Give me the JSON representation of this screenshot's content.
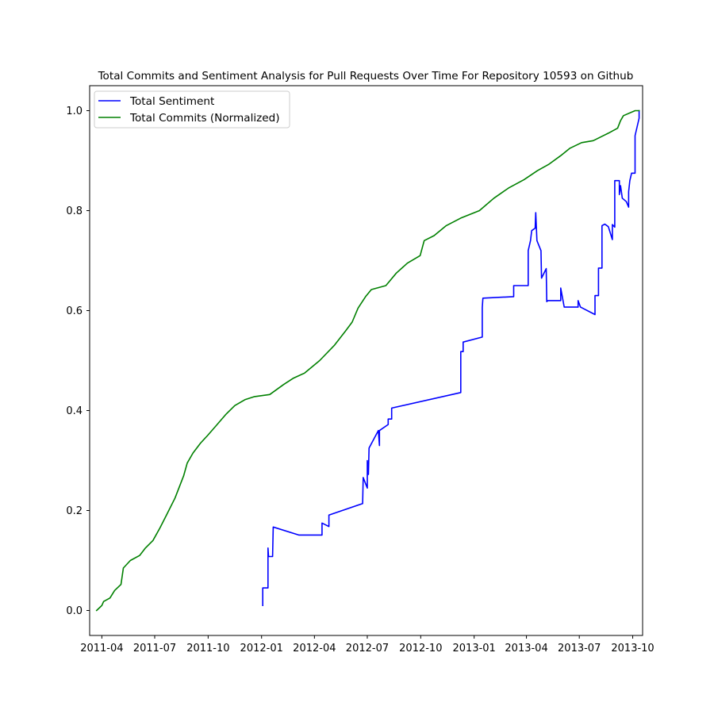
{
  "chart_data": {
    "type": "line",
    "title": "Total Commits and Sentiment Analysis for Pull Requests Over Time For Repository 10593 on Github",
    "xlabel": "",
    "ylabel": "",
    "xlim": [
      "2011-03-11",
      "2013-10-18"
    ],
    "ylim": [
      -0.05,
      1.05
    ],
    "grid": false,
    "legend_position": "top-left",
    "x_ticks": [
      "2011-04",
      "2011-07",
      "2011-10",
      "2012-01",
      "2012-04",
      "2012-07",
      "2012-10",
      "2013-01",
      "2013-04",
      "2013-07",
      "2013-10"
    ],
    "y_ticks": [
      "0.0",
      "0.2",
      "0.4",
      "0.6",
      "0.8",
      "1.0"
    ],
    "series": [
      {
        "name": "Total Sentiment",
        "color": "#0000ff",
        "points": [
          [
            "2012-01-03",
            0.01
          ],
          [
            "2012-01-03",
            0.045
          ],
          [
            "2012-01-12",
            0.045
          ],
          [
            "2012-01-12",
            0.125
          ],
          [
            "2012-01-13",
            0.108
          ],
          [
            "2012-01-20",
            0.108
          ],
          [
            "2012-01-21",
            0.167
          ],
          [
            "2012-03-05",
            0.151
          ],
          [
            "2012-04-14",
            0.151
          ],
          [
            "2012-04-14",
            0.175
          ],
          [
            "2012-04-26",
            0.168
          ],
          [
            "2012-04-26",
            0.191
          ],
          [
            "2012-06-23",
            0.214
          ],
          [
            "2012-06-24",
            0.266
          ],
          [
            "2012-07-01",
            0.245
          ],
          [
            "2012-07-01",
            0.3
          ],
          [
            "2012-07-03",
            0.272
          ],
          [
            "2012-07-04",
            0.325
          ],
          [
            "2012-07-20",
            0.36
          ],
          [
            "2012-07-22",
            0.33
          ],
          [
            "2012-07-22",
            0.36
          ],
          [
            "2012-08-06",
            0.372
          ],
          [
            "2012-08-06",
            0.383
          ],
          [
            "2012-08-12",
            0.383
          ],
          [
            "2012-08-12",
            0.405
          ],
          [
            "2012-12-09",
            0.436
          ],
          [
            "2012-12-09",
            0.518
          ],
          [
            "2012-12-13",
            0.518
          ],
          [
            "2012-12-13",
            0.537
          ],
          [
            "2013-01-15",
            0.547
          ],
          [
            "2013-01-15",
            0.606
          ],
          [
            "2013-01-16",
            0.625
          ],
          [
            "2013-03-10",
            0.628
          ],
          [
            "2013-03-10",
            0.65
          ],
          [
            "2013-04-04",
            0.65
          ],
          [
            "2013-04-04",
            0.72
          ],
          [
            "2013-04-08",
            0.74
          ],
          [
            "2013-04-10",
            0.76
          ],
          [
            "2013-04-16",
            0.765
          ],
          [
            "2013-04-17",
            0.796
          ],
          [
            "2013-04-19",
            0.74
          ],
          [
            "2013-04-26",
            0.72
          ],
          [
            "2013-04-27",
            0.665
          ],
          [
            "2013-05-05",
            0.684
          ],
          [
            "2013-05-06",
            0.618
          ],
          [
            "2013-05-08",
            0.62
          ],
          [
            "2013-05-30",
            0.62
          ],
          [
            "2013-05-30",
            0.645
          ],
          [
            "2013-06-05",
            0.607
          ],
          [
            "2013-06-29",
            0.607
          ],
          [
            "2013-06-29",
            0.62
          ],
          [
            "2013-07-03",
            0.607
          ],
          [
            "2013-07-28",
            0.592
          ],
          [
            "2013-07-28",
            0.63
          ],
          [
            "2013-08-03",
            0.63
          ],
          [
            "2013-08-03",
            0.685
          ],
          [
            "2013-08-09",
            0.685
          ],
          [
            "2013-08-09",
            0.77
          ],
          [
            "2013-08-14",
            0.773
          ],
          [
            "2013-08-20",
            0.768
          ],
          [
            "2013-08-27",
            0.742
          ],
          [
            "2013-08-27",
            0.772
          ],
          [
            "2013-08-31",
            0.767
          ],
          [
            "2013-08-31",
            0.86
          ],
          [
            "2013-09-08",
            0.86
          ],
          [
            "2013-09-08",
            0.832
          ],
          [
            "2013-09-10",
            0.85
          ],
          [
            "2013-09-13",
            0.825
          ],
          [
            "2013-09-20",
            0.818
          ],
          [
            "2013-09-24",
            0.807
          ],
          [
            "2013-09-24",
            0.838
          ],
          [
            "2013-09-26",
            0.86
          ],
          [
            "2013-09-29",
            0.875
          ],
          [
            "2013-10-05",
            0.875
          ],
          [
            "2013-10-05",
            0.95
          ],
          [
            "2013-10-12",
            0.985
          ],
          [
            "2013-10-12",
            1.0
          ]
        ]
      },
      {
        "name": "Total Commits (Normalized)",
        "color": "#008000",
        "points": [
          [
            "2011-03-23",
            0.0
          ],
          [
            "2011-04-01",
            0.01
          ],
          [
            "2011-04-04",
            0.018
          ],
          [
            "2011-04-15",
            0.025
          ],
          [
            "2011-04-23",
            0.04
          ],
          [
            "2011-05-04",
            0.052
          ],
          [
            "2011-05-08",
            0.085
          ],
          [
            "2011-05-20",
            0.1
          ],
          [
            "2011-06-05",
            0.11
          ],
          [
            "2011-06-15",
            0.125
          ],
          [
            "2011-06-28",
            0.14
          ],
          [
            "2011-07-10",
            0.165
          ],
          [
            "2011-07-21",
            0.19
          ],
          [
            "2011-08-05",
            0.225
          ],
          [
            "2011-08-20",
            0.27
          ],
          [
            "2011-08-26",
            0.295
          ],
          [
            "2011-09-05",
            0.315
          ],
          [
            "2011-09-18",
            0.335
          ],
          [
            "2011-09-30",
            0.35
          ],
          [
            "2011-10-15",
            0.37
          ],
          [
            "2011-11-01",
            0.393
          ],
          [
            "2011-11-16",
            0.41
          ],
          [
            "2011-12-04",
            0.422
          ],
          [
            "2011-12-20",
            0.428
          ],
          [
            "2012-01-15",
            0.432
          ],
          [
            "2012-02-08",
            0.452
          ],
          [
            "2012-02-25",
            0.465
          ],
          [
            "2012-03-15",
            0.475
          ],
          [
            "2012-04-10",
            0.5
          ],
          [
            "2012-05-05",
            0.53
          ],
          [
            "2012-05-25",
            0.56
          ],
          [
            "2012-06-05",
            0.577
          ],
          [
            "2012-06-15",
            0.605
          ],
          [
            "2012-06-28",
            0.628
          ],
          [
            "2012-07-08",
            0.642
          ],
          [
            "2012-08-02",
            0.65
          ],
          [
            "2012-08-20",
            0.675
          ],
          [
            "2012-09-08",
            0.695
          ],
          [
            "2012-09-30",
            0.71
          ],
          [
            "2012-10-07",
            0.74
          ],
          [
            "2012-10-24",
            0.75
          ],
          [
            "2012-11-14",
            0.77
          ],
          [
            "2012-12-09",
            0.785
          ],
          [
            "2013-01-10",
            0.8
          ],
          [
            "2013-02-04",
            0.825
          ],
          [
            "2013-03-01",
            0.845
          ],
          [
            "2013-03-28",
            0.862
          ],
          [
            "2013-04-20",
            0.88
          ],
          [
            "2013-05-10",
            0.893
          ],
          [
            "2013-05-30",
            0.91
          ],
          [
            "2013-06-15",
            0.925
          ],
          [
            "2013-07-05",
            0.936
          ],
          [
            "2013-07-25",
            0.94
          ],
          [
            "2013-08-20",
            0.955
          ],
          [
            "2013-09-05",
            0.965
          ],
          [
            "2013-09-10",
            0.98
          ],
          [
            "2013-09-15",
            0.99
          ],
          [
            "2013-10-05",
            1.0
          ],
          [
            "2013-10-12",
            1.0
          ]
        ]
      }
    ]
  }
}
